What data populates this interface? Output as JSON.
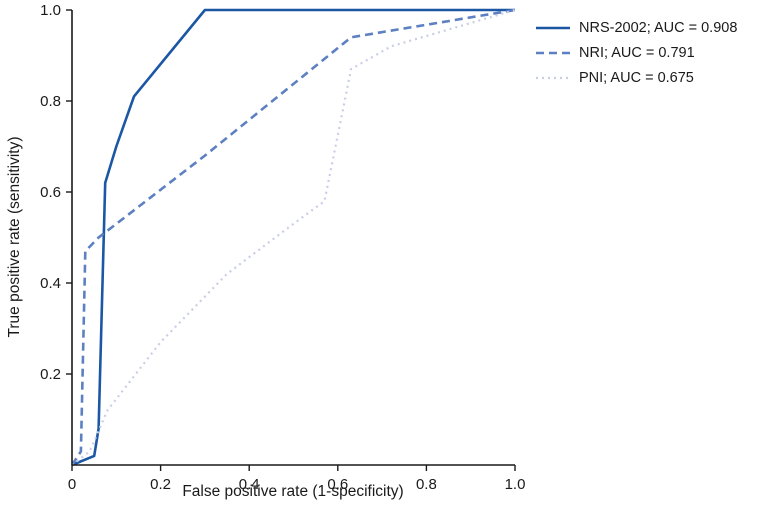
{
  "chart_data": {
    "type": "line",
    "subtype": "roc-curve",
    "title": "",
    "xlabel": "False positive rate (1-specificity)",
    "ylabel": "True positive rate (sensitivity)",
    "xlim": [
      0,
      1.0
    ],
    "ylim": [
      0,
      1.0
    ],
    "x_ticks": [
      0,
      0.2,
      0.4,
      0.6,
      0.8,
      1.0
    ],
    "x_tick_labels": [
      "0",
      "0.2",
      "0.4",
      "0.6",
      "0.8",
      "1.0"
    ],
    "y_ticks": [
      0.2,
      0.4,
      0.6,
      0.8,
      1.0
    ],
    "y_tick_labels": [
      "0.2",
      "0.4",
      "0.6",
      "0.8",
      "1.0"
    ],
    "grid": false,
    "legend_position": "top-right-outside",
    "axis_color": "#1a1a1a",
    "series": [
      {
        "name": "NRS-2002",
        "auc": 0.908,
        "legend_label": "NRS-2002; AUC = 0.908",
        "style": "solid",
        "color": "#1b57a5",
        "points": [
          [
            0,
            0
          ],
          [
            0.05,
            0.02
          ],
          [
            0.06,
            0.08
          ],
          [
            0.075,
            0.62
          ],
          [
            0.1,
            0.7
          ],
          [
            0.14,
            0.81
          ],
          [
            0.3,
            1.0
          ],
          [
            1.0,
            1.0
          ]
        ]
      },
      {
        "name": "NRI",
        "auc": 0.791,
        "legend_label": "NRI; AUC = 0.791",
        "style": "dashed",
        "color": "#5c80c2",
        "points": [
          [
            0,
            0
          ],
          [
            0.02,
            0.03
          ],
          [
            0.03,
            0.47
          ],
          [
            0.06,
            0.5
          ],
          [
            0.3,
            0.68
          ],
          [
            0.63,
            0.94
          ],
          [
            1.0,
            1.0
          ]
        ]
      },
      {
        "name": "PNI",
        "auc": 0.675,
        "legend_label": "PNI; AUC = 0.675",
        "style": "dotted",
        "color": "#c9cee6",
        "points": [
          [
            0,
            0
          ],
          [
            0.04,
            0.03
          ],
          [
            0.08,
            0.12
          ],
          [
            0.2,
            0.27
          ],
          [
            0.35,
            0.42
          ],
          [
            0.5,
            0.53
          ],
          [
            0.57,
            0.58
          ],
          [
            0.63,
            0.87
          ],
          [
            0.72,
            0.92
          ],
          [
            1.0,
            1.0
          ]
        ]
      }
    ]
  }
}
